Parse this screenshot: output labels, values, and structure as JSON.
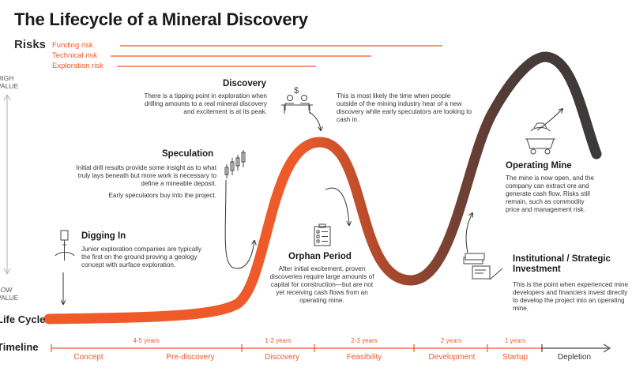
{
  "title": "The Lifecycle of a Mineral Discovery",
  "risks": {
    "label": "Risks",
    "items": [
      "Funding risk",
      "Technical risk",
      "Exploration risk"
    ]
  },
  "value_axis": {
    "high": "HIGH\nVALUE",
    "low": "LOW\nVALUE"
  },
  "life_cycle_label": "Life Cycle",
  "timeline_label": "Timeline",
  "stages": [
    "Concept",
    "Pre-discovery",
    "Discovery",
    "Feasibility",
    "Development",
    "Startup",
    "Depletion"
  ],
  "durations": [
    "4-5 years",
    "1-2 years",
    "2-3 years",
    "2 years",
    "1 years"
  ],
  "phases": {
    "discovery": {
      "heading": "Discovery",
      "text": "There is a tipping point in exploration when drilling amounts to a real mineral discovery and excitement is at its peak.",
      "note": "This is most likely the time when people outside of the mining industry hear of a new discovery while early speculators are looking to cash in."
    },
    "speculation": {
      "heading": "Speculation",
      "text": "Initial drill results provide some insight as to what truly lays beneath but more work is necessary to define a mineable deposit.",
      "text2": "Early speculators buy into the project."
    },
    "digging_in": {
      "heading": "Digging In",
      "text": "Junior exploration companies are typically the first on the ground proving a geology concept with surface exploration."
    },
    "orphan_period": {
      "heading": "Orphan Period",
      "text": "After initial excitement, proven discoveries require large amounts of capital for construction—but are not yet receiving cash flows from an operating mine."
    },
    "operating_mine": {
      "heading": "Operating Mine",
      "text": "The mine is now open, and the company can extract ore and generate cash flow. Risks still remain, such as commodity price and management risk."
    },
    "institutional": {
      "heading": "Institutional / Strategic Investment",
      "text": "This is the point when experienced mine developers and financiers invest directly to develop the project into an operating mine."
    }
  },
  "colors": {
    "accent": "#ee5a2a",
    "dark": "#3d3d3d",
    "text": "#222222"
  }
}
